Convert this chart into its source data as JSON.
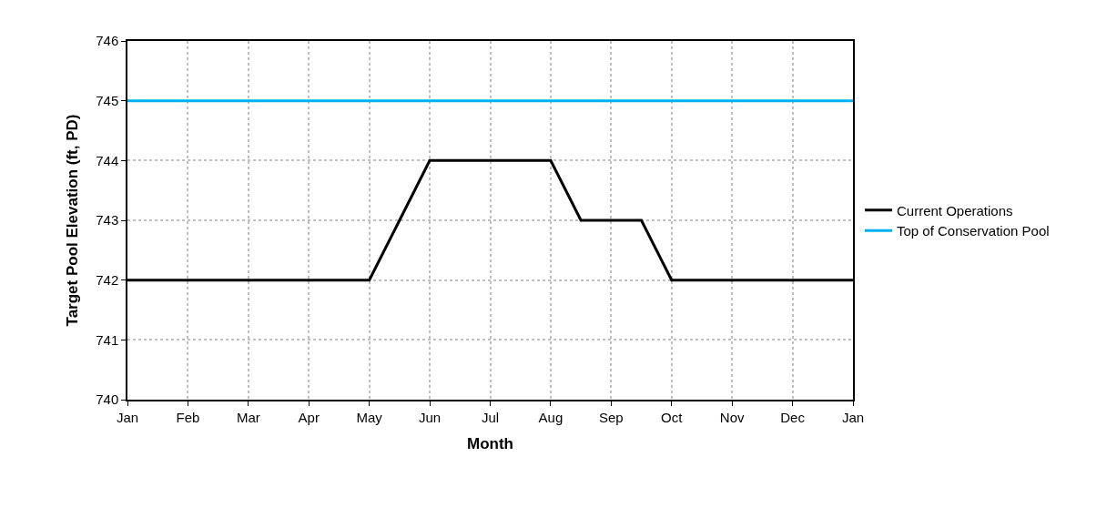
{
  "chart_data": {
    "type": "line",
    "xlabel": "Month",
    "ylabel": "Target Pool Elevation (ft, PD)",
    "categories": [
      "Jan",
      null,
      "Feb",
      null,
      "Mar",
      null,
      "Apr",
      null,
      "May",
      null,
      "Jun",
      null,
      "Jul",
      null,
      "Aug",
      null,
      "Sep",
      null,
      "Oct",
      null,
      "Nov",
      null,
      "Dec",
      null,
      "Jan"
    ],
    "series": [
      {
        "name": "Current Operations",
        "color": "#000000",
        "values": [
          742,
          742,
          742,
          742,
          742,
          742,
          742,
          742,
          742,
          743,
          744,
          744,
          744,
          744,
          744,
          743,
          743,
          743,
          742,
          742,
          742,
          742,
          742,
          742,
          742
        ]
      },
      {
        "name": "Top of Conservation Pool",
        "color": "#00b0f0",
        "values": [
          745,
          745,
          745,
          745,
          745,
          745,
          745,
          745,
          745,
          745,
          745,
          745,
          745,
          745,
          745,
          745,
          745,
          745,
          745,
          745,
          745,
          745,
          745,
          745,
          745
        ]
      }
    ],
    "ylim": [
      740,
      746
    ],
    "yticks": [
      740,
      741,
      742,
      743,
      744,
      745,
      746
    ],
    "grid": true,
    "legend": "right",
    "marker": "none",
    "line_style": "solid"
  }
}
